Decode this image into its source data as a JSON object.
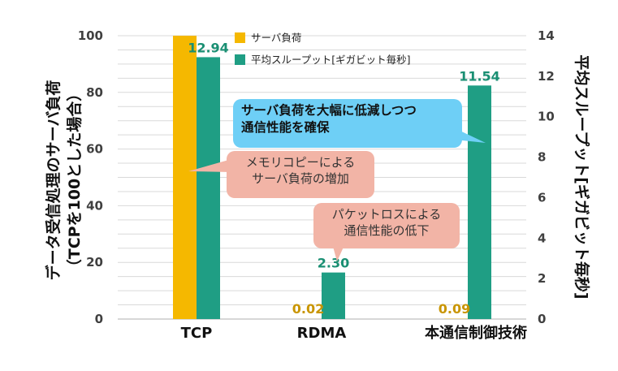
{
  "chart_data": {
    "type": "bar",
    "categories": [
      "TCP",
      "RDMA",
      "本通信制御技術"
    ],
    "series": [
      {
        "name": "サーバ負荷",
        "axis": "left",
        "color": "#f5b800",
        "values": [
          100,
          0.02,
          0.09
        ],
        "labels": [
          "",
          "0.02",
          "0.09"
        ]
      },
      {
        "name": "平均スループット[ギガビット毎秒]",
        "axis": "right",
        "color": "#1f9e84",
        "values": [
          12.94,
          2.3,
          11.54
        ],
        "labels": [
          "12.94",
          "2.30",
          "11.54"
        ]
      }
    ],
    "ylabel": "データ受信処理のサーバ負荷",
    "ylabel_sub": "（TCPを100とした場合）",
    "ylim": [
      0,
      100
    ],
    "yticks": [
      "0",
      "20",
      "40",
      "60",
      "80",
      "100"
    ],
    "y2label": "平均スループット[ギガビット毎秒]",
    "y2lim": [
      0,
      14
    ],
    "y2ticks": [
      "0",
      "2",
      "4",
      "6",
      "8",
      "10",
      "12",
      "14"
    ],
    "grid": true,
    "legend_position": "top-center"
  },
  "callouts": {
    "memory_copy": [
      "メモリコピーによる",
      "サーバ負荷の増加"
    ],
    "packet_loss": [
      "パケットロスによる",
      "通信性能の低下"
    ],
    "reduction": [
      "サーバ負荷を大幅に低減しつつ",
      "通信性能を確保"
    ]
  },
  "colors": {
    "pink": "#f2b4a6",
    "blue": "#6ecff6",
    "grid": "#d9d9d9",
    "data_label": "#1a8f73",
    "load_label": "#c99500"
  }
}
